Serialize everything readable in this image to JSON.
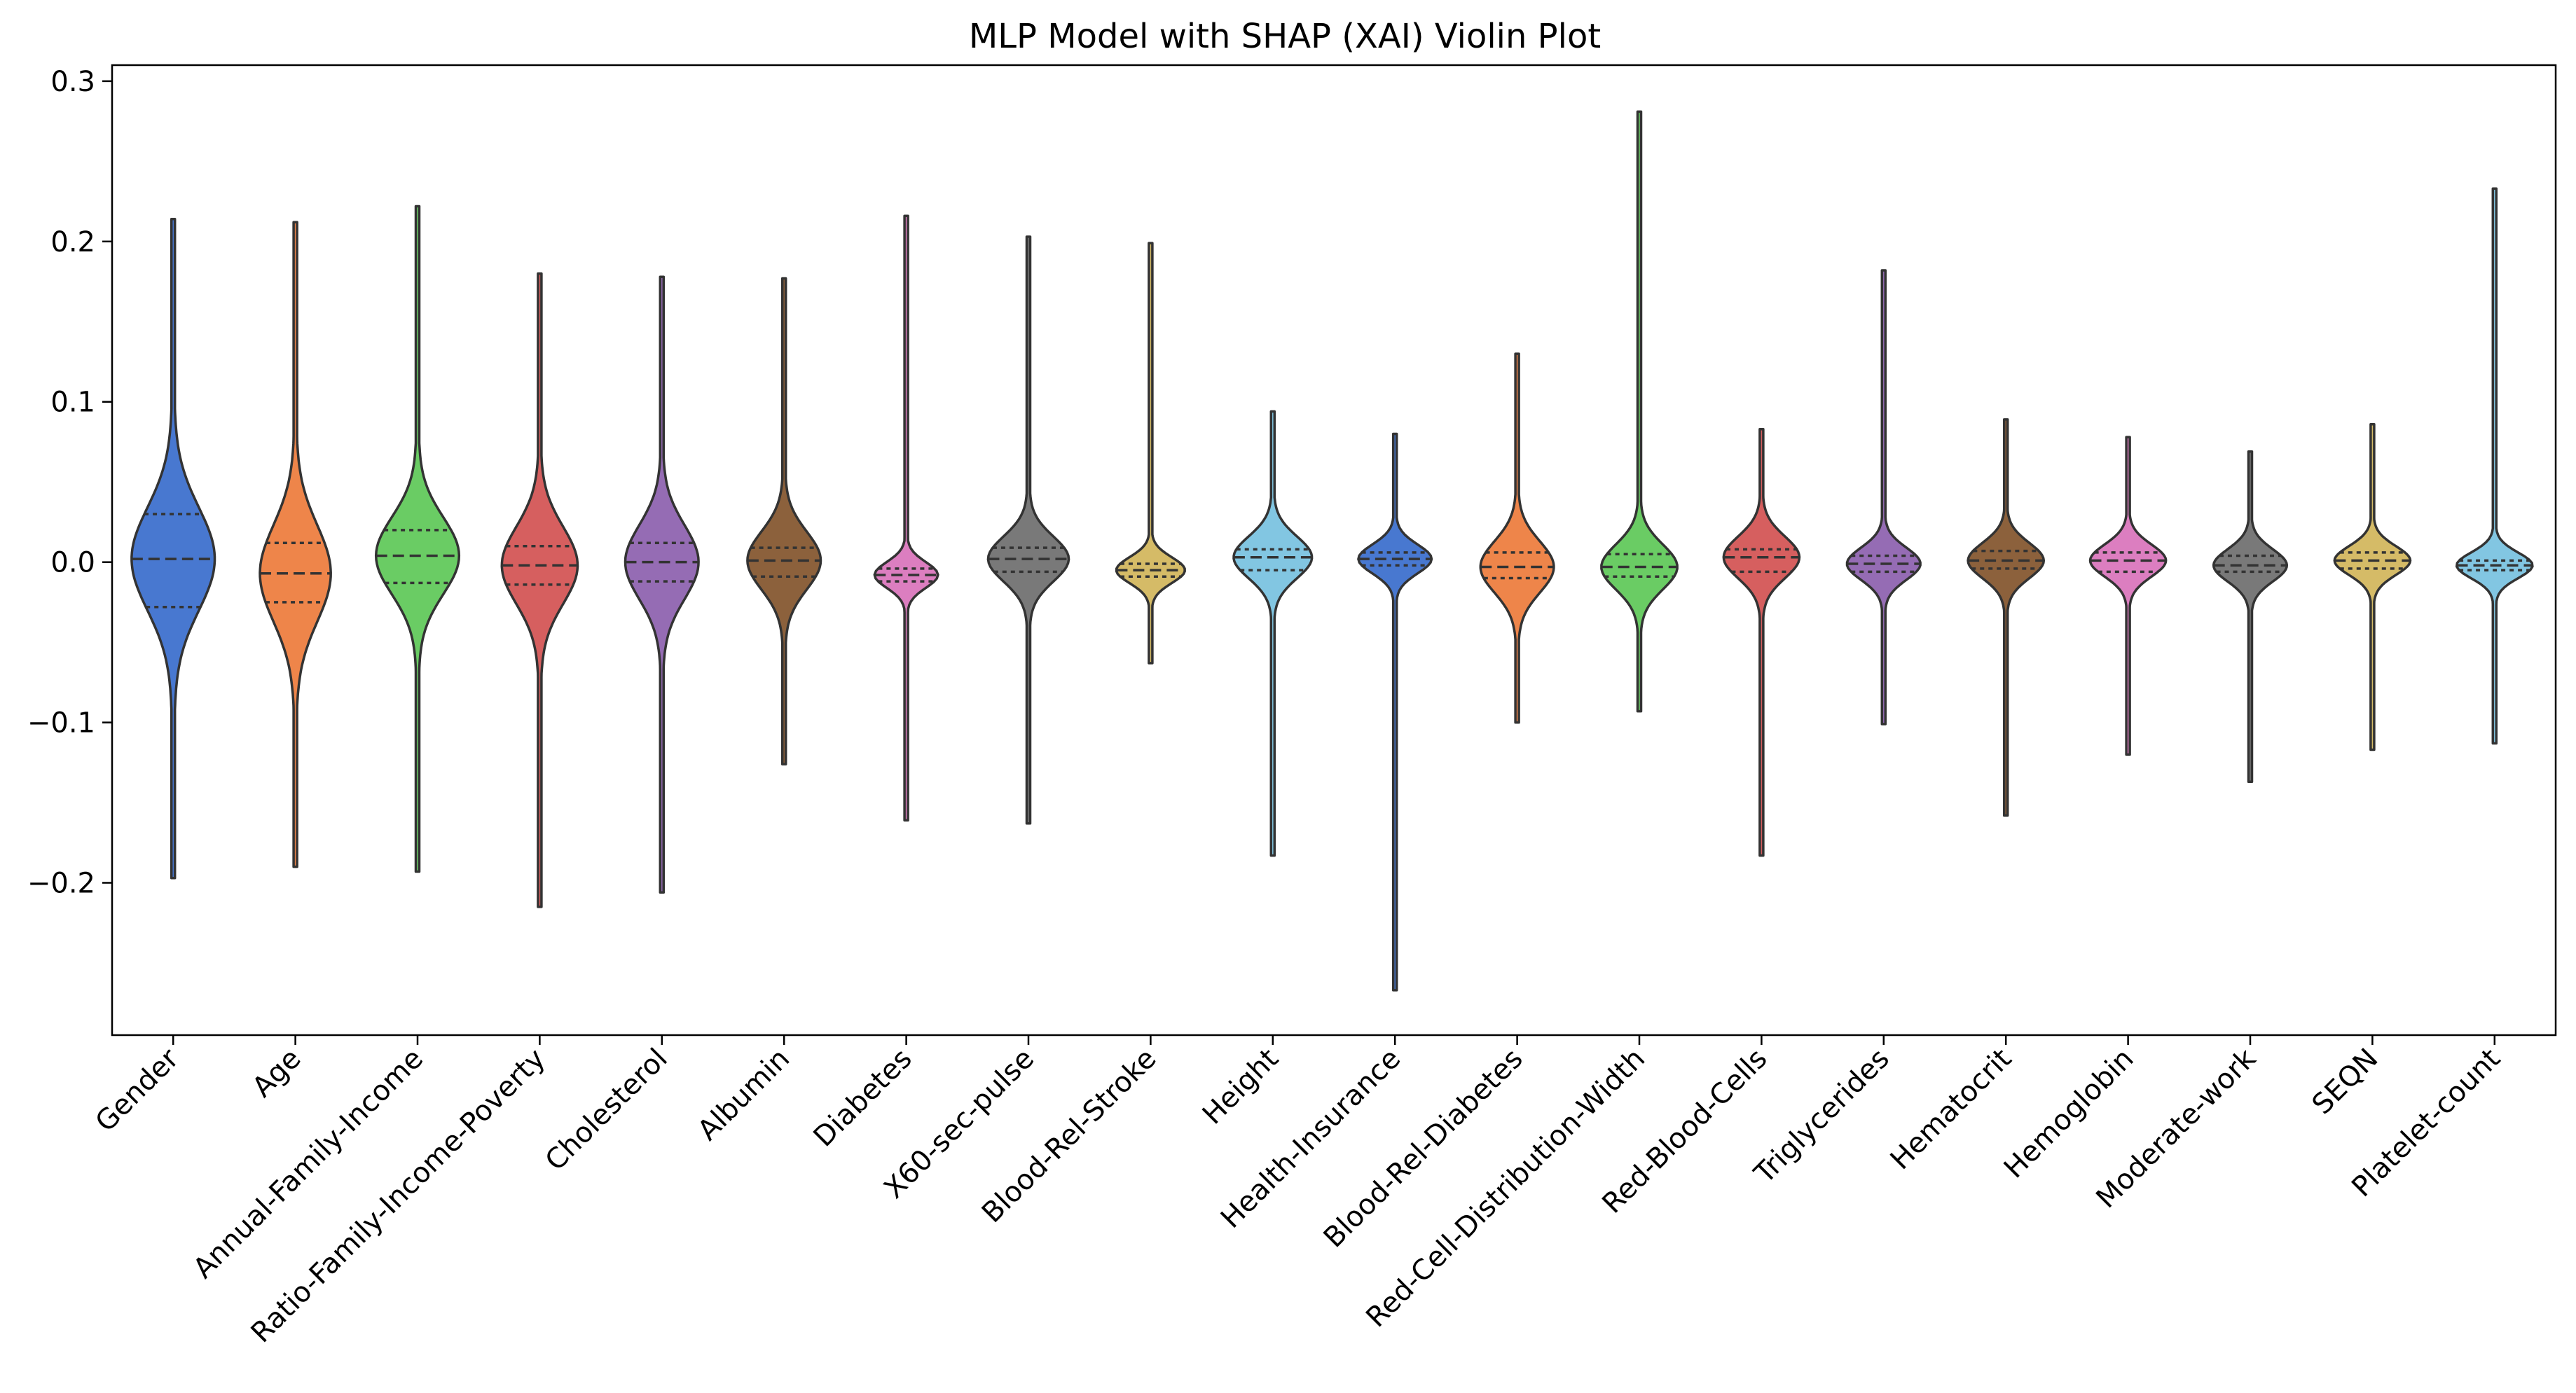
{
  "chart_data": {
    "type": "violin",
    "title": "MLP Model with SHAP (XAI) Violin Plot",
    "xlabel": "",
    "ylabel": "",
    "ylim": [
      -0.295,
      0.31
    ],
    "yticks": [
      -0.2,
      -0.1,
      0.0,
      0.1,
      0.2,
      0.3
    ],
    "ytick_labels": [
      "−0.2",
      "−0.1",
      "0.0",
      "0.1",
      "0.2",
      "0.3"
    ],
    "grid": false,
    "inner": "quartile",
    "categories": [
      "Gender",
      "Age",
      "Annual-Family-Income",
      "Ratio-Family-Income-Poverty",
      "Cholesterol",
      "Albumin",
      "Diabetes",
      "X60-sec-pulse",
      "Blood-Rel-Stroke",
      "Height",
      "Health-Insurance",
      "Blood-Rel-Diabetes",
      "Red-Cell-Distribution-Width",
      "Red-Blood-Cells",
      "Triglycerides",
      "Hematocrit",
      "Hemoglobin",
      "Moderate-work",
      "SEQN",
      "Platelet-count"
    ],
    "colors": [
      "#4878d0",
      "#ee854a",
      "#6acc64",
      "#d65f5f",
      "#956cb4",
      "#8c613c",
      "#dc7ec0",
      "#797979",
      "#d5bb67",
      "#82c6e2",
      "#4878d0",
      "#ee854a",
      "#6acc64",
      "#d65f5f",
      "#956cb4",
      "#8c613c",
      "#dc7ec0",
      "#797979",
      "#d5bb67",
      "#82c6e2"
    ],
    "violins": [
      {
        "min": -0.197,
        "max": 0.214,
        "q1": -0.028,
        "median": 0.002,
        "q3": 0.03
      },
      {
        "min": -0.19,
        "max": 0.212,
        "q1": -0.025,
        "median": -0.007,
        "q3": 0.012
      },
      {
        "min": -0.193,
        "max": 0.222,
        "q1": -0.013,
        "median": 0.004,
        "q3": 0.02
      },
      {
        "min": -0.215,
        "max": 0.18,
        "q1": -0.014,
        "median": -0.002,
        "q3": 0.01
      },
      {
        "min": -0.206,
        "max": 0.178,
        "q1": -0.012,
        "median": 0.0,
        "q3": 0.012
      },
      {
        "min": -0.126,
        "max": 0.177,
        "q1": -0.009,
        "median": 0.001,
        "q3": 0.009
      },
      {
        "min": -0.161,
        "max": 0.216,
        "q1": -0.012,
        "median": -0.008,
        "q3": -0.004
      },
      {
        "min": -0.163,
        "max": 0.203,
        "q1": -0.006,
        "median": 0.002,
        "q3": 0.009
      },
      {
        "min": -0.063,
        "max": 0.199,
        "q1": -0.009,
        "median": -0.005,
        "q3": -0.001
      },
      {
        "min": -0.183,
        "max": 0.094,
        "q1": -0.005,
        "median": 0.003,
        "q3": 0.008
      },
      {
        "min": -0.267,
        "max": 0.08,
        "q1": -0.002,
        "median": 0.002,
        "q3": 0.006
      },
      {
        "min": -0.1,
        "max": 0.13,
        "q1": -0.01,
        "median": -0.003,
        "q3": 0.006
      },
      {
        "min": -0.093,
        "max": 0.281,
        "q1": -0.009,
        "median": -0.003,
        "q3": 0.005
      },
      {
        "min": -0.183,
        "max": 0.083,
        "q1": -0.006,
        "median": 0.003,
        "q3": 0.008
      },
      {
        "min": -0.101,
        "max": 0.182,
        "q1": -0.006,
        "median": -0.001,
        "q3": 0.004
      },
      {
        "min": -0.158,
        "max": 0.089,
        "q1": -0.004,
        "median": 0.001,
        "q3": 0.007
      },
      {
        "min": -0.12,
        "max": 0.078,
        "q1": -0.006,
        "median": 0.001,
        "q3": 0.006
      },
      {
        "min": -0.137,
        "max": 0.069,
        "q1": -0.006,
        "median": -0.002,
        "q3": 0.004
      },
      {
        "min": -0.117,
        "max": 0.086,
        "q1": -0.004,
        "median": 0.001,
        "q3": 0.006
      },
      {
        "min": -0.113,
        "max": 0.233,
        "q1": -0.005,
        "median": -0.002,
        "q3": 0.001
      }
    ],
    "widths": [
      0.34,
      0.29,
      0.34,
      0.31,
      0.3,
      0.3,
      0.26,
      0.33,
      0.28,
      0.32,
      0.3,
      0.3,
      0.31,
      0.31,
      0.3,
      0.31,
      0.31,
      0.3,
      0.31,
      0.31
    ],
    "spreads": [
      0.032,
      0.03,
      0.024,
      0.024,
      0.023,
      0.018,
      0.008,
      0.014,
      0.008,
      0.013,
      0.009,
      0.016,
      0.014,
      0.013,
      0.01,
      0.011,
      0.01,
      0.01,
      0.009,
      0.008
    ]
  }
}
